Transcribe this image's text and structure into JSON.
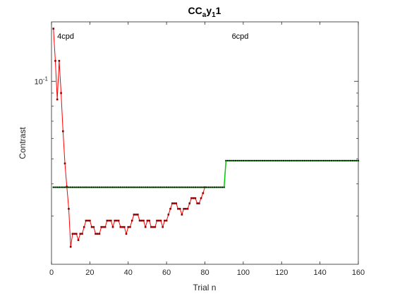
{
  "chart_data": {
    "type": "line",
    "title": {
      "main": "CC",
      "sub1": "a",
      "mid": "y",
      "sub2": "1",
      "tail": "1"
    },
    "xlabel": "Trial n",
    "ylabel": "Contrast",
    "xlim": [
      0,
      160
    ],
    "ylim": [
      0.0195,
      0.17
    ],
    "yscale": "log",
    "grid": false,
    "xticks": [
      0,
      20,
      40,
      60,
      80,
      100,
      120,
      140,
      160
    ],
    "xtick_labels": [
      "0",
      "20",
      "40",
      "60",
      "80",
      "100",
      "120",
      "140",
      "160"
    ],
    "yticks_major": [
      0.1
    ],
    "ytick_label": {
      "base": "10",
      "exp": "-1"
    },
    "yticks_minor": [
      0.03,
      0.04,
      0.05,
      0.06,
      0.07,
      0.08,
      0.09
    ],
    "annotations": [
      {
        "text": "4cpd",
        "x": 3,
        "y_frac": 0.93
      },
      {
        "text": "6cpd",
        "x": 94,
        "y_frac": 0.93
      }
    ],
    "series": [
      {
        "color": "#ff0000",
        "marker_color": "#8b0000",
        "x": [
          1,
          2,
          3,
          4,
          5,
          6,
          7,
          8,
          9,
          10,
          11,
          12,
          13,
          14,
          15,
          16,
          17,
          18,
          19,
          20,
          21,
          22,
          23,
          24,
          25,
          26,
          27,
          28,
          29,
          30,
          31,
          32,
          33,
          34,
          35,
          36,
          37,
          38,
          39,
          40,
          41,
          42,
          43,
          44,
          45,
          46,
          47,
          48,
          49,
          50,
          51,
          52,
          53,
          54,
          55,
          56,
          57,
          58,
          59,
          60,
          61,
          62,
          63,
          64,
          65,
          66,
          67,
          68,
          69,
          70,
          71,
          72,
          73,
          74,
          75,
          76,
          77,
          78,
          79,
          80
        ],
        "y": [
          0.16,
          0.12,
          0.085,
          0.12,
          0.09,
          0.064,
          0.048,
          0.039,
          0.032,
          0.0228,
          0.0256,
          0.0256,
          0.0256,
          0.0242,
          0.0256,
          0.0256,
          0.0272,
          0.0288,
          0.0288,
          0.0288,
          0.0272,
          0.0272,
          0.0256,
          0.0256,
          0.0256,
          0.0272,
          0.0272,
          0.0272,
          0.0288,
          0.0288,
          0.0288,
          0.0272,
          0.0288,
          0.0288,
          0.0288,
          0.0272,
          0.0272,
          0.0272,
          0.0256,
          0.0272,
          0.0272,
          0.0288,
          0.0304,
          0.0304,
          0.0304,
          0.0288,
          0.0288,
          0.0288,
          0.0272,
          0.0288,
          0.0288,
          0.0272,
          0.0272,
          0.0272,
          0.0288,
          0.0288,
          0.0288,
          0.0272,
          0.0288,
          0.0288,
          0.0304,
          0.032,
          0.0336,
          0.0336,
          0.0336,
          0.032,
          0.032,
          0.0304,
          0.032,
          0.032,
          0.032,
          0.0336,
          0.0352,
          0.0352,
          0.0352,
          0.0336,
          0.0336,
          0.0352,
          0.0368,
          0.0388
        ]
      },
      {
        "color": "#00cc00",
        "marker_color": "#003300",
        "segments": [
          {
            "x_start": 1,
            "x_end": 90,
            "y": 0.0388
          },
          {
            "x_start": 91,
            "x_end": 160,
            "y": 0.0492
          }
        ]
      }
    ]
  }
}
